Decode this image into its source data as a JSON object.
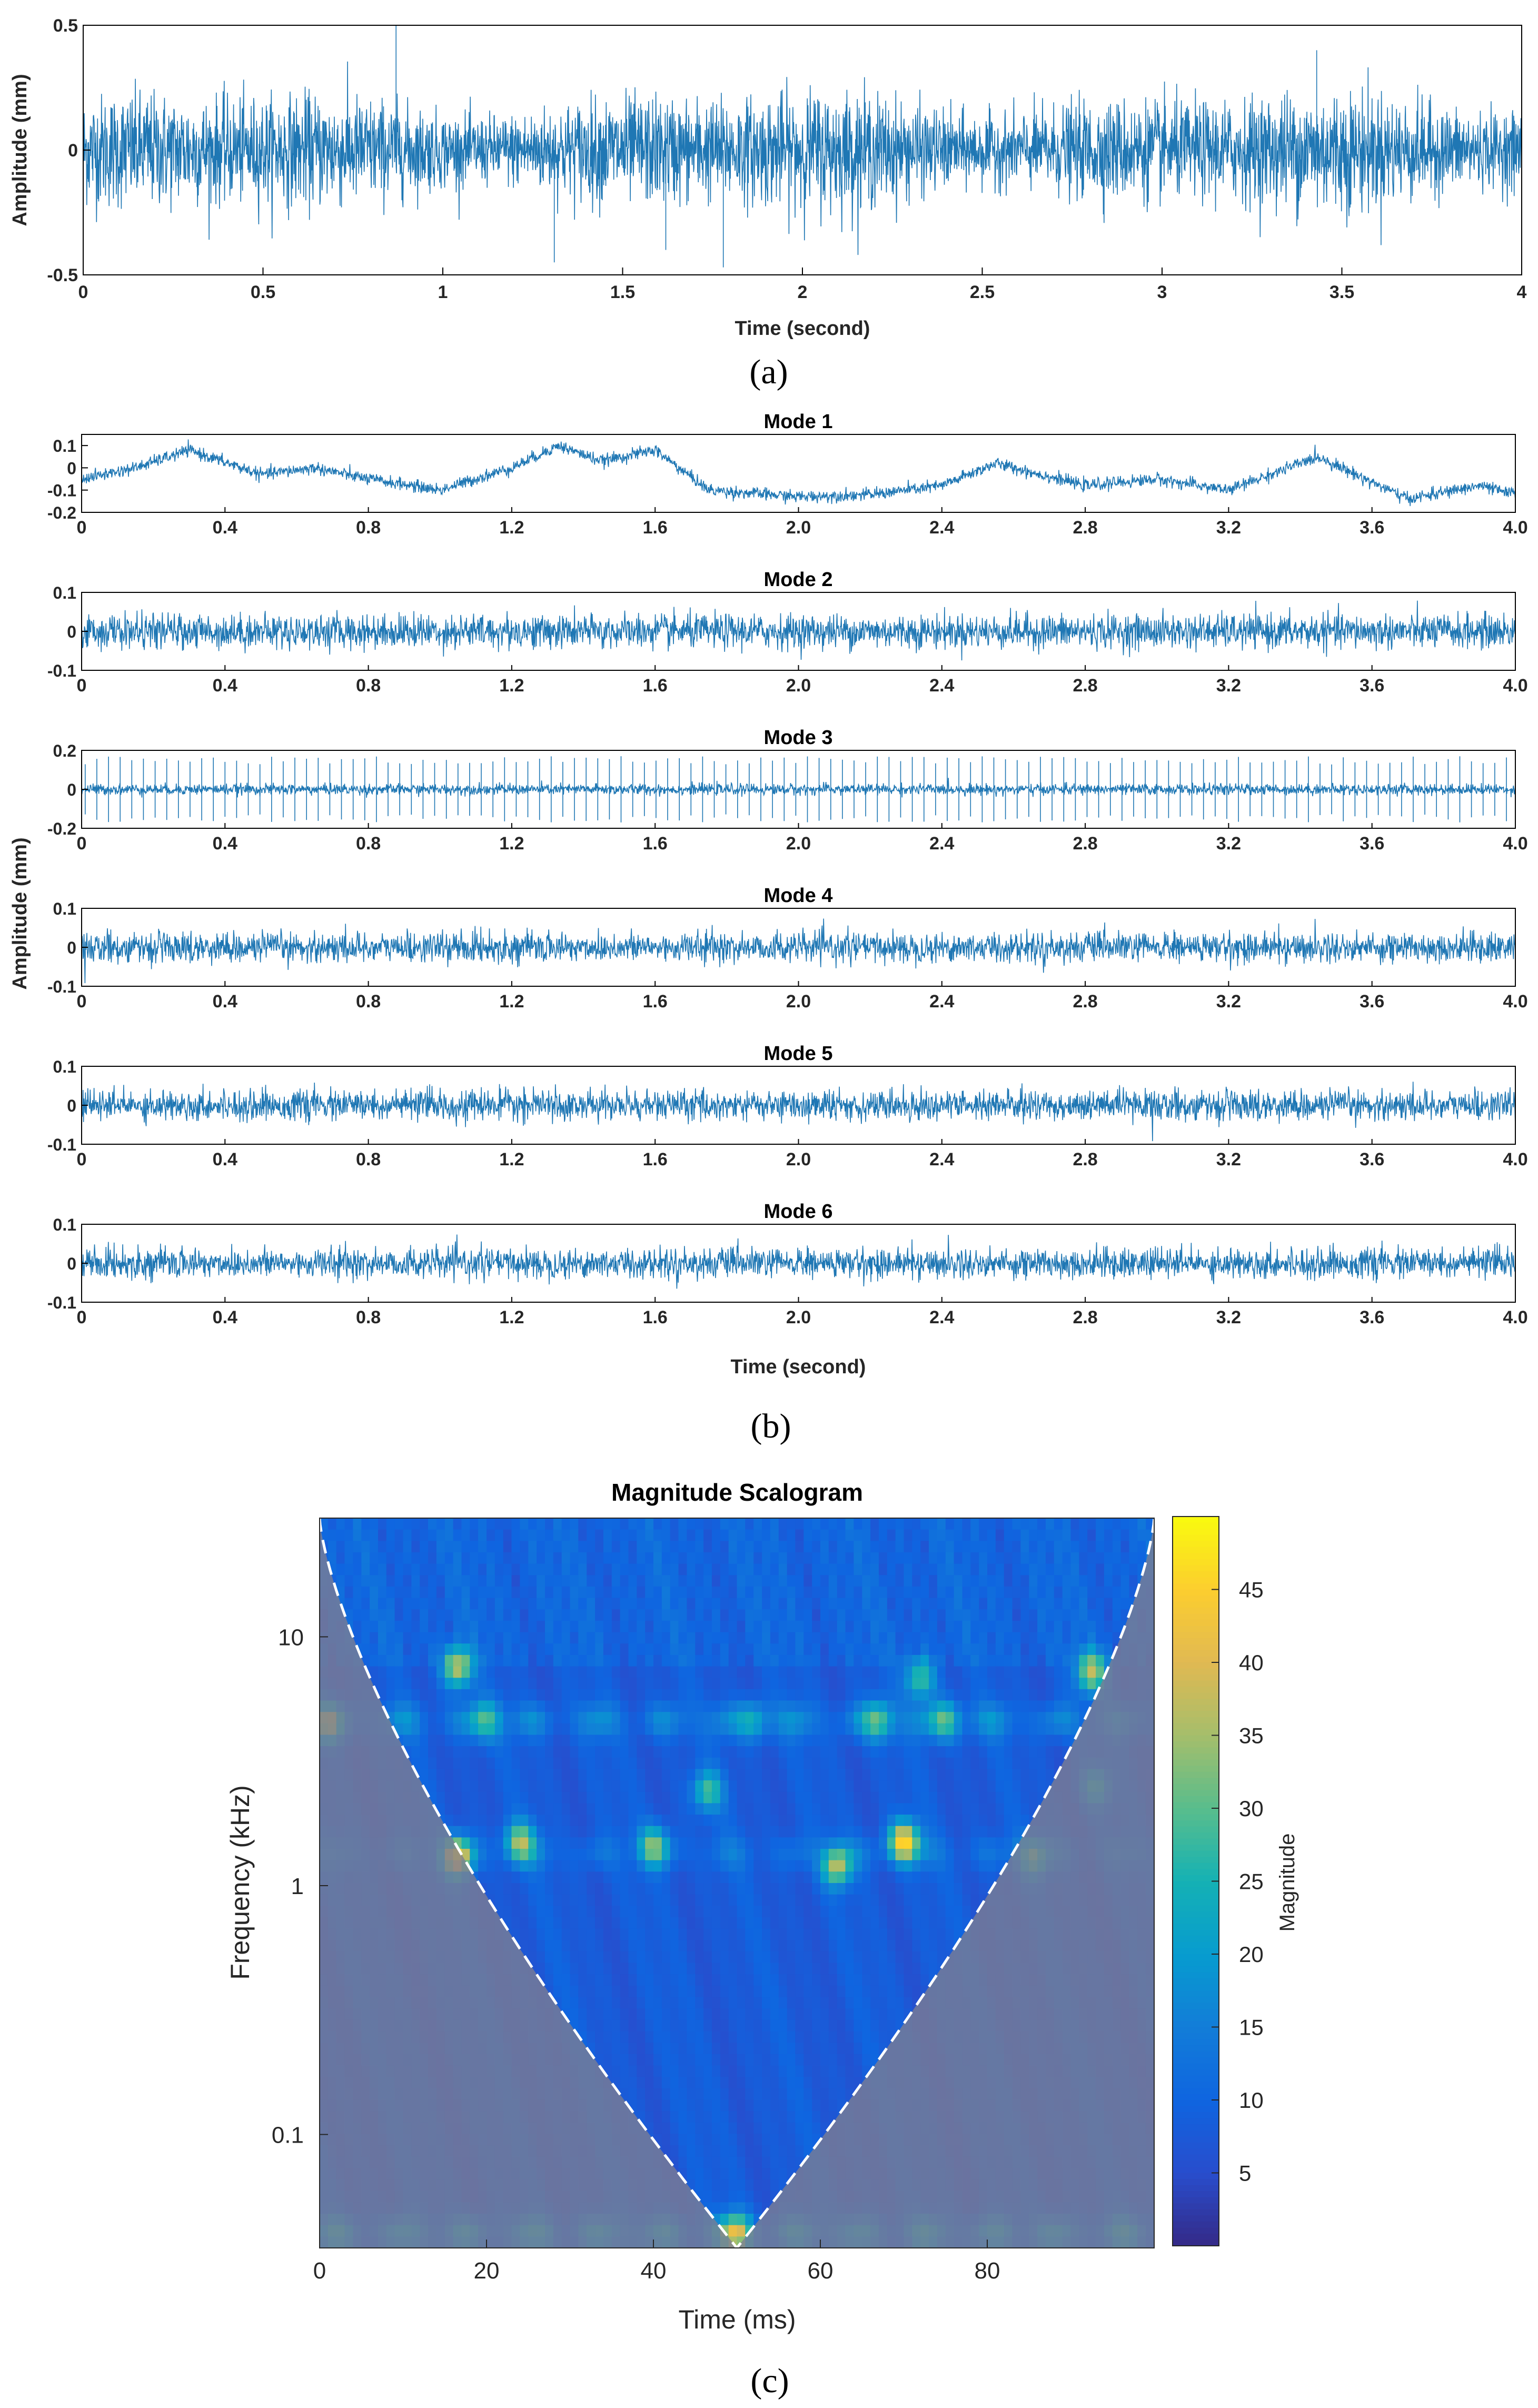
{
  "colors": {
    "signal": "#1f77b4",
    "axis": "#262626",
    "frame": "#000000",
    "coi": "#ffffff",
    "shade": "#7d7d92"
  },
  "panel_labels": {
    "a": "(a)",
    "b": "(b)",
    "c": "(c)"
  },
  "chart_data": [
    {
      "id": "a",
      "type": "line",
      "title": "",
      "xlabel": "Time (second)",
      "ylabel": "Amplitude (mm)",
      "xlim": [
        0,
        4
      ],
      "ylim": [
        -0.5,
        0.5
      ],
      "xticks": [
        0,
        0.5,
        1,
        1.5,
        2,
        2.5,
        3,
        3.5,
        4
      ],
      "xtick_labels": [
        "0",
        "0.5",
        "1",
        "1.5",
        "2",
        "2.5",
        "3",
        "3.5",
        "4"
      ],
      "yticks": [
        0.5,
        0,
        -0.5
      ],
      "ytick_labels": [
        "0.5",
        "0",
        "-0.5"
      ],
      "signal_description": "noisy vibration signal, envelope about ±0.25 mm with spikes up to ±0.5 mm",
      "noise_amplitude": 0.16,
      "spikes": [
        [
          0.87,
          0.5
        ],
        [
          1.31,
          -0.45
        ],
        [
          1.78,
          -0.47
        ],
        [
          1.62,
          -0.4
        ],
        [
          3.43,
          0.4
        ]
      ]
    },
    {
      "id": "b",
      "type": "line",
      "shared_ylabel": "Amplitude (mm)",
      "xlabel": "Time (second)",
      "xlim": [
        0,
        4
      ],
      "xticks": [
        0,
        0.4,
        0.8,
        1.2,
        1.6,
        2.0,
        2.4,
        2.8,
        3.2,
        3.6,
        4.0
      ],
      "xtick_labels": [
        "0",
        "0.4",
        "0.8",
        "1.2",
        "1.6",
        "2.0",
        "2.4",
        "2.8",
        "3.2",
        "3.6",
        "4.0"
      ],
      "modes": [
        {
          "title": "Mode 1",
          "ylim": [
            -0.2,
            0.15
          ],
          "yticks": [
            0.1,
            0,
            -0.1,
            -0.2
          ],
          "ytick_labels": [
            "0.1",
            "0",
            "-0.1",
            "-0.2"
          ],
          "noise": 0.025,
          "trend": [
            [
              0,
              -0.05
            ],
            [
              0.15,
              0.0
            ],
            [
              0.3,
              0.08
            ],
            [
              0.5,
              -0.03
            ],
            [
              0.65,
              0.0
            ],
            [
              0.8,
              -0.05
            ],
            [
              1.0,
              -0.1
            ],
            [
              1.2,
              0.0
            ],
            [
              1.33,
              0.1
            ],
            [
              1.45,
              0.03
            ],
            [
              1.6,
              0.08
            ],
            [
              1.75,
              -0.1
            ],
            [
              2.0,
              -0.13
            ],
            [
              2.2,
              -0.12
            ],
            [
              2.4,
              -0.08
            ],
            [
              2.55,
              0.02
            ],
            [
              2.8,
              -0.08
            ],
            [
              3.0,
              -0.05
            ],
            [
              3.2,
              -0.1
            ],
            [
              3.45,
              0.05
            ],
            [
              3.7,
              -0.14
            ],
            [
              3.9,
              -0.08
            ],
            [
              4.0,
              -0.12
            ]
          ]
        },
        {
          "title": "Mode 2",
          "ylim": [
            -0.1,
            0.1
          ],
          "yticks": [
            0.1,
            0,
            -0.1
          ],
          "ytick_labels": [
            "0.1",
            "0",
            "-0.1"
          ],
          "noise": 0.04
        },
        {
          "title": "Mode 3",
          "ylim": [
            -0.2,
            0.2
          ],
          "yticks": [
            0.2,
            0,
            -0.2
          ],
          "ytick_labels": [
            "0.2",
            "0",
            "-0.2"
          ],
          "noise": 0.025,
          "impulse_period": 0.0325,
          "impulse_amplitude": 0.17
        },
        {
          "title": "Mode 4",
          "ylim": [
            -0.1,
            0.1
          ],
          "yticks": [
            0.1,
            0,
            -0.1
          ],
          "ytick_labels": [
            "0.1",
            "0",
            "-0.1"
          ],
          "noise": 0.035
        },
        {
          "title": "Mode 5",
          "ylim": [
            -0.1,
            0.1
          ],
          "yticks": [
            0.1,
            0,
            -0.1
          ],
          "ytick_labels": [
            "0.1",
            "0",
            "-0.1"
          ],
          "noise": 0.035
        },
        {
          "title": "Mode 6",
          "ylim": [
            -0.1,
            0.1
          ],
          "yticks": [
            0.1,
            0,
            -0.1
          ],
          "ytick_labels": [
            "0.1",
            "0",
            "-0.1"
          ],
          "noise": 0.035
        }
      ]
    },
    {
      "id": "c",
      "type": "heatmap",
      "title": "Magnitude Scalogram",
      "xlabel": "Time (ms)",
      "ylabel": "Frequency (kHz)",
      "xlim": [
        0,
        100
      ],
      "xticks": [
        0,
        20,
        40,
        60,
        80
      ],
      "xtick_labels": [
        "0",
        "20",
        "40",
        "60",
        "80"
      ],
      "y_scale": "log",
      "ylim_khz": [
        0.035,
        30
      ],
      "yticks": [
        10,
        1,
        0.1
      ],
      "ytick_labels": [
        "10",
        "1",
        "0.1"
      ],
      "colorbar": {
        "label": "Magnitude",
        "range": [
          0,
          50
        ],
        "ticks": [
          45,
          40,
          35,
          30,
          25,
          20,
          15,
          10,
          5
        ],
        "tick_labels": [
          "45",
          "40",
          "35",
          "30",
          "25",
          "20",
          "15",
          "10",
          "5"
        ],
        "colormap": "parula"
      },
      "hotspots": [
        {
          "time_ms": 16.5,
          "freq_khz": 1.3,
          "magnitude": 42
        },
        {
          "time_ms": 70,
          "freq_khz": 1.5,
          "magnitude": 46
        },
        {
          "time_ms": 62,
          "freq_khz": 1.2,
          "magnitude": 36
        },
        {
          "time_ms": 24,
          "freq_khz": 1.5,
          "magnitude": 33
        },
        {
          "time_ms": 40,
          "freq_khz": 1.45,
          "magnitude": 30
        },
        {
          "time_ms": 46.5,
          "freq_khz": 2.4,
          "magnitude": 28
        },
        {
          "time_ms": 85.5,
          "freq_khz": 1.3,
          "magnitude": 28
        },
        {
          "time_ms": 93,
          "freq_khz": 2.5,
          "magnitude": 25
        },
        {
          "time_ms": 16.5,
          "freq_khz": 7.5,
          "magnitude": 38
        },
        {
          "time_ms": 92.5,
          "freq_khz": 7.2,
          "magnitude": 36
        },
        {
          "time_ms": 72,
          "freq_khz": 6.8,
          "magnitude": 30
        },
        {
          "time_ms": 1,
          "freq_khz": 4.5,
          "magnitude": 30
        },
        {
          "time_ms": 20,
          "freq_khz": 4.6,
          "magnitude": 24
        },
        {
          "time_ms": 67,
          "freq_khz": 4.6,
          "magnitude": 26
        },
        {
          "time_ms": 75,
          "freq_khz": 4.6,
          "magnitude": 27
        },
        {
          "time_ms": 52,
          "freq_khz": 4.6,
          "magnitude": 22
        },
        {
          "time_ms": 50,
          "freq_khz": 0.04,
          "magnitude": 28
        }
      ],
      "bands": [
        {
          "freq_khz": 4.6,
          "magnitude": 18
        },
        {
          "freq_khz": 1.35,
          "magnitude": 14
        },
        {
          "freq_khz": 0.04,
          "magnitude": 24
        }
      ],
      "background_magnitude": 8,
      "coi": "dashed white cone of influence; shaded region outside"
    }
  ]
}
